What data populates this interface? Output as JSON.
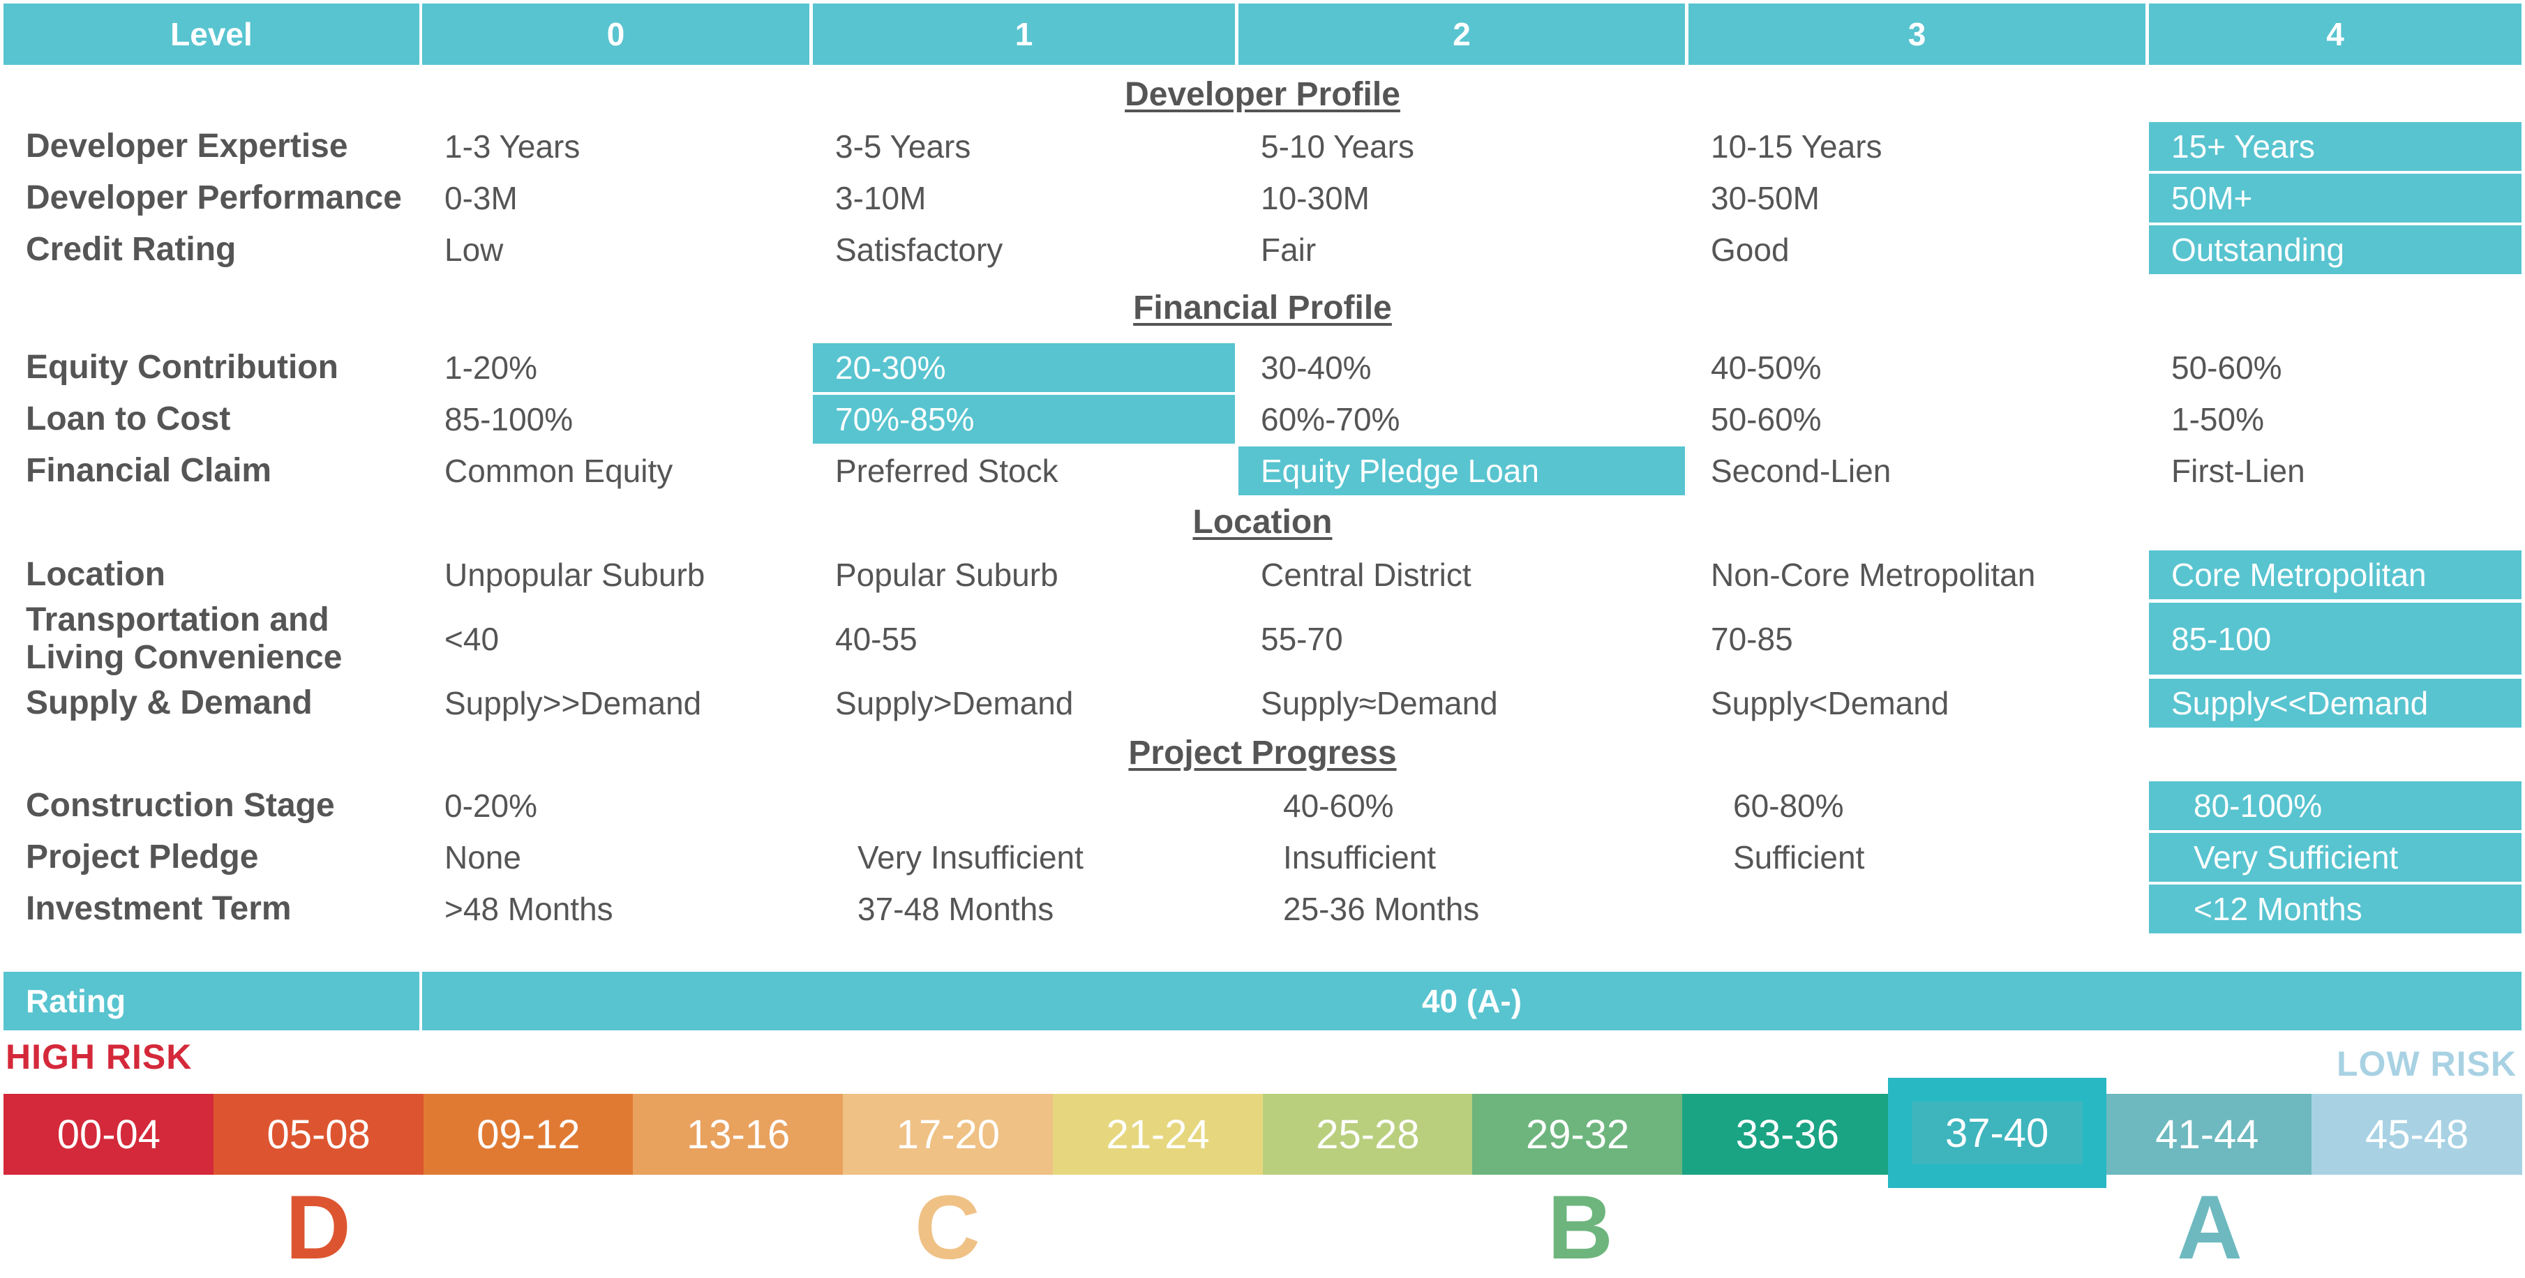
{
  "header": {
    "level_label": "Level",
    "levels": [
      "0",
      "1",
      "2",
      "3",
      "4"
    ]
  },
  "sections": {
    "developer": "Developer Profile",
    "financial": "Financial Profile",
    "location": "Location",
    "progress": "Project Progress"
  },
  "rows": {
    "developer_expertise": {
      "label": "Developer Expertise",
      "values": [
        "1-3 Years",
        "3-5 Years",
        "5-10 Years",
        "10-15 Years",
        "15+ Years"
      ],
      "selected_level": 4
    },
    "developer_performance": {
      "label": "Developer Performance",
      "values": [
        "0-3M",
        "3-10M",
        "10-30M",
        "30-50M",
        "50M+"
      ],
      "selected_level": 4
    },
    "credit_rating": {
      "label": "Credit Rating",
      "values": [
        "Low",
        "Satisfactory",
        "Fair",
        "Good",
        "Outstanding"
      ],
      "selected_level": 4
    },
    "equity_contribution": {
      "label": "Equity Contribution",
      "values": [
        "1-20%",
        "20-30%",
        "30-40%",
        "40-50%",
        "50-60%"
      ],
      "selected_level": 1
    },
    "loan_to_cost": {
      "label": "Loan to Cost",
      "values": [
        "85-100%",
        "70%-85%",
        "60%-70%",
        "50-60%",
        "1-50%"
      ],
      "selected_level": 1
    },
    "financial_claim": {
      "label": "Financial Claim",
      "values": [
        "Common Equity",
        "Preferred Stock",
        "Equity Pledge Loan",
        "Second-Lien",
        "First-Lien"
      ],
      "selected_level": 2
    },
    "location": {
      "label": "Location",
      "values": [
        "Unpopular Suburb",
        "Popular Suburb",
        "Central District",
        "Non-Core Metropolitan",
        "Core Metropolitan"
      ],
      "selected_level": 4
    },
    "transportation": {
      "label_line1": "Transportation and",
      "label_line2": "Living Convenience",
      "values": [
        "<40",
        "40-55",
        "55-70",
        "70-85",
        "85-100"
      ],
      "selected_level": 4
    },
    "supply_demand": {
      "label": "Supply & Demand",
      "values": [
        "Supply>>Demand",
        "Supply>Demand",
        "Supply≈Demand",
        "Supply<Demand",
        "Supply<<Demand"
      ],
      "selected_level": 4
    },
    "construction_stage": {
      "label": "Construction Stage",
      "values": [
        "0-20%",
        "",
        "40-60%",
        "60-80%",
        "80-100%"
      ],
      "selected_level": 4
    },
    "project_pledge": {
      "label": "Project Pledge",
      "values": [
        "None",
        "Very Insufficient",
        "Insufficient",
        "Sufficient",
        "Very Sufficient"
      ],
      "selected_level": 4
    },
    "investment_term": {
      "label": "Investment Term",
      "values": [
        ">48 Months",
        "37-48 Months",
        "25-36 Months",
        "",
        "<12 Months"
      ],
      "selected_level": 4
    }
  },
  "rating": {
    "label": "Rating",
    "value": "40 (A-)"
  },
  "scale": {
    "high_risk": "HIGH RISK",
    "low_risk": "LOW RISK",
    "segments": [
      "00-04",
      "05-08",
      "09-12",
      "13-16",
      "17-20",
      "21-24",
      "25-28",
      "29-32",
      "33-36",
      "37-40",
      "41-44",
      "45-48"
    ],
    "segment_colors": [
      "#d4293a",
      "#dd5530",
      "#e07a33",
      "#e9a15e",
      "#efc185",
      "#e6d77e",
      "#b9cf7e",
      "#6db57d",
      "#1aa484",
      "#3eb5bd",
      "#6db9bf",
      "#a8d2e3"
    ],
    "selected_segment": "37-40",
    "grades": [
      "D",
      "C",
      "B",
      "A"
    ],
    "grade_colors": [
      "#dd5530",
      "#efc185",
      "#6db57d",
      "#6db9bf"
    ]
  }
}
